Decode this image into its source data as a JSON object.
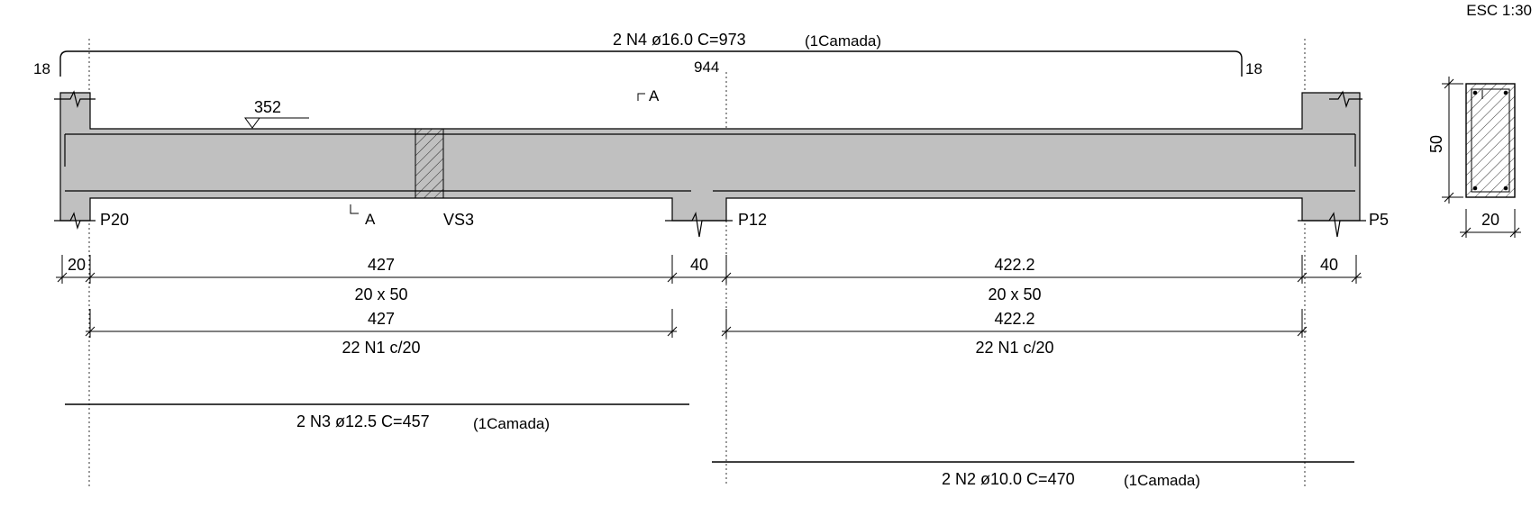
{
  "scale_label": "ESC 1:30",
  "top_bar": {
    "label": "2 N4 ø16.0 C=973",
    "layer": "(1Camada)",
    "hook_left": "18",
    "hook_right": "18",
    "mid_length": "944"
  },
  "level_mark": "352",
  "section_marks": {
    "top": "A",
    "bottom": "A"
  },
  "supports": {
    "left": "P20",
    "middle": "P12",
    "right": "P5"
  },
  "beam_label": "VS3",
  "dimensions": {
    "support_left": "20",
    "span1": "427",
    "support_mid": "40",
    "span2": "422.2",
    "support_right": "40"
  },
  "sections": {
    "span1": "20 x 50",
    "span2": "20 x 50"
  },
  "stirrups": {
    "span1_length": "427",
    "span1_label": "22 N1 c/20",
    "span2_length": "422.2",
    "span2_label": "22 N1 c/20"
  },
  "bottom_bar_1": {
    "label": "2 N3 ø12.5 C=457",
    "layer": "(1Camada)"
  },
  "bottom_bar_2": {
    "label": "2 N2 ø10.0 C=470",
    "layer": "(1Camada)"
  },
  "cross_section": {
    "height": "50",
    "width": "20"
  },
  "colors": {
    "concrete": "#c0c0c0",
    "line": "#000000",
    "background": "#ffffff"
  }
}
